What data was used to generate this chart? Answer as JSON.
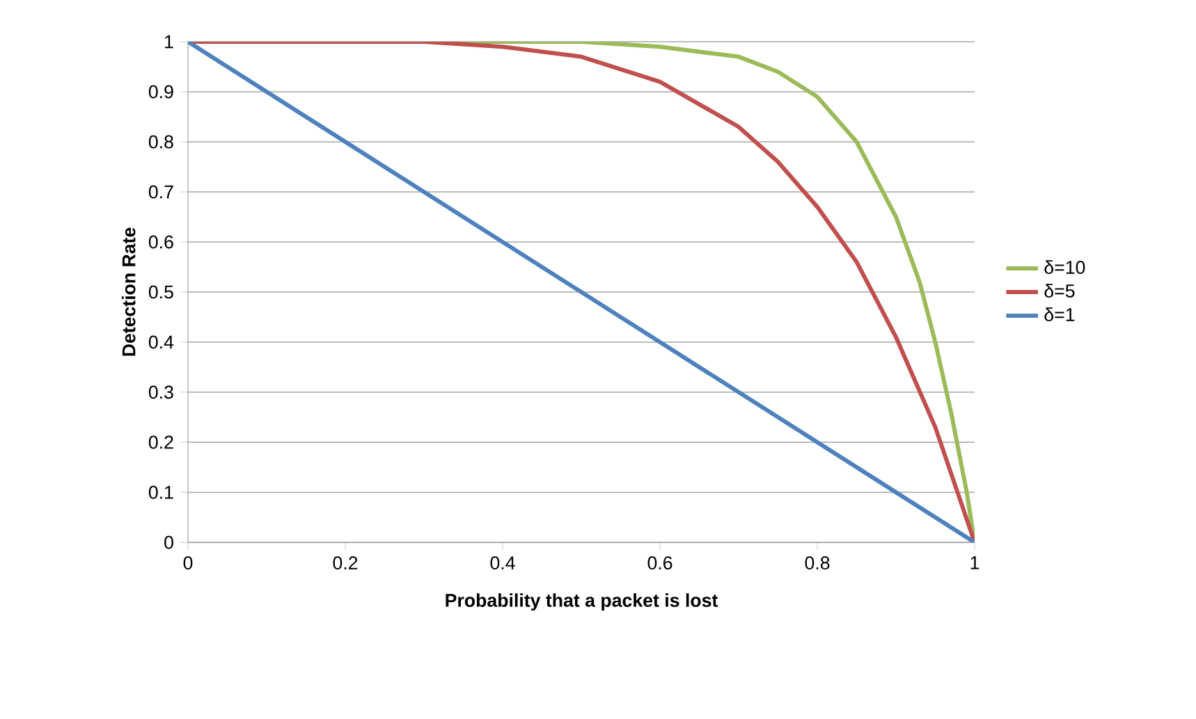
{
  "chart_data": {
    "type": "line",
    "xlabel": "Probability that a packet is lost",
    "ylabel": "Detection Rate",
    "xlim": [
      0,
      1
    ],
    "ylim": [
      0,
      1
    ],
    "xticks": [
      0,
      0.2,
      0.4,
      0.6,
      0.8,
      1
    ],
    "yticks": [
      0,
      0.1,
      0.2,
      0.3,
      0.4,
      0.5,
      0.6,
      0.7,
      0.8,
      0.9,
      1
    ],
    "grid": "y",
    "legend": "right",
    "marker": "none",
    "line_style": "solid",
    "series": [
      {
        "name": "δ=10",
        "color": "#9bbb59",
        "x": [
          0,
          0.3,
          0.5,
          0.6,
          0.7,
          0.75,
          0.8,
          0.85,
          0.9,
          0.93,
          0.95,
          0.97,
          0.99,
          1
        ],
        "values": [
          1,
          1,
          1,
          0.99,
          0.97,
          0.94,
          0.89,
          0.8,
          0.65,
          0.52,
          0.4,
          0.26,
          0.1,
          0
        ]
      },
      {
        "name": "δ=5",
        "color": "#c0504d",
        "x": [
          0,
          0.2,
          0.3,
          0.4,
          0.5,
          0.6,
          0.7,
          0.75,
          0.8,
          0.85,
          0.9,
          0.95,
          1
        ],
        "values": [
          1,
          1,
          1,
          0.99,
          0.97,
          0.92,
          0.83,
          0.76,
          0.67,
          0.56,
          0.41,
          0.23,
          0
        ]
      },
      {
        "name": "δ=1",
        "color": "#4f81bd",
        "x": [
          0,
          1
        ],
        "values": [
          1,
          0
        ]
      }
    ]
  }
}
